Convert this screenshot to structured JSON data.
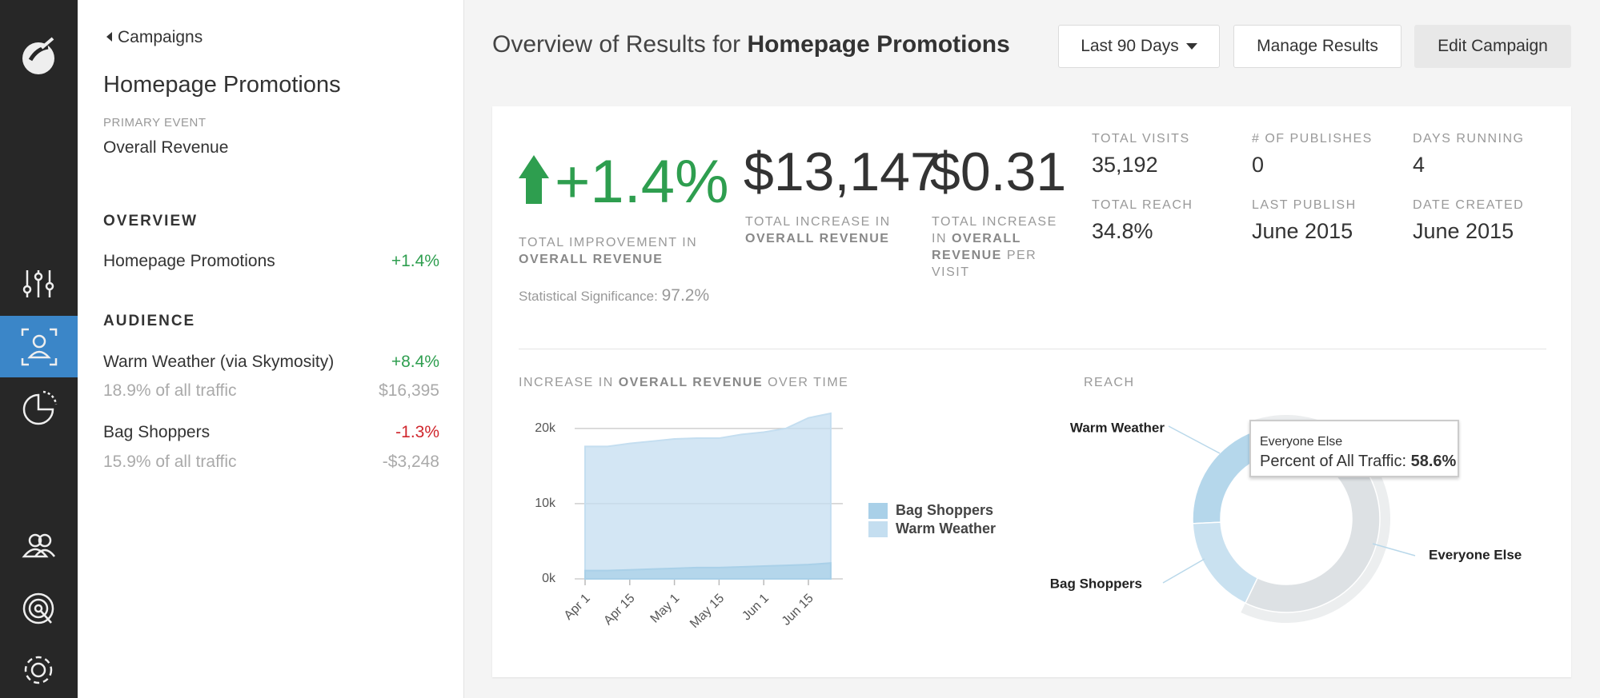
{
  "sidebar": {
    "back": "Campaigns",
    "title": "Homepage Promotions",
    "primary_label": "PRIMARY EVENT",
    "primary_value": "Overall Revenue",
    "overview_heading": "OVERVIEW",
    "overview": [
      {
        "name": "Homepage Promotions",
        "change": "+1.4%"
      }
    ],
    "audience_heading": "AUDIENCE",
    "audience": [
      {
        "name": "Warm Weather (via Skymosity)",
        "change": "+8.4%",
        "share": "18.9% of all traffic",
        "revenue": "$16,395"
      },
      {
        "name": "Bag Shoppers",
        "change": "-1.3%",
        "share": "15.9% of all traffic",
        "revenue": "-$3,248"
      }
    ]
  },
  "header": {
    "title_prefix": "Overview of Results for",
    "title_name": "Homepage Promotions",
    "buttons": [
      "Last 90 Days",
      "Manage Results",
      "Edit Campaign"
    ]
  },
  "summary": {
    "improvement": "+1.4%",
    "improvement_label": [
      "TOTAL IMPROVEMENT IN",
      "OVERALL REVENUE"
    ],
    "significance_label": "Statistical Significance:",
    "significance": "97.2%",
    "increase": "$13,147",
    "increase_label": [
      "TOTAL INCREASE IN",
      "OVERALL REVENUE"
    ],
    "per_visit": "$0.31",
    "per_visit_label": [
      "TOTAL INCREASE IN",
      "OVERALL REVENUE",
      "PER VISIT"
    ]
  },
  "stats": [
    {
      "label": "TOTAL VISITS",
      "value": "35,192"
    },
    {
      "label": "# OF PUBLISHES",
      "value": "0"
    },
    {
      "label": "DAYS RUNNING",
      "value": "4"
    },
    {
      "label": "TOTAL REACH",
      "value": "34.8%"
    },
    {
      "label": "LAST PUBLISH",
      "value": "June 2015"
    },
    {
      "label": "DATE CREATED",
      "value": "June 2015"
    }
  ],
  "chart_data": [
    {
      "type": "area",
      "title_parts": [
        "INCREASE IN",
        "OVERALL REVENUE",
        "OVER TIME"
      ],
      "x": [
        "Apr 1",
        "Apr 8",
        "Apr 15",
        "Apr 22",
        "May 1",
        "May 8",
        "May 15",
        "May 22",
        "Jun 1",
        "Jun 8",
        "Jun 15",
        "Jun 22"
      ],
      "xticks": [
        "Apr 1",
        "Apr 15",
        "May 1",
        "May 15",
        "Jun 1",
        "Jun 15"
      ],
      "ylim": [
        0,
        22000
      ],
      "yticks": [
        {
          "value": 0,
          "label": "0k"
        },
        {
          "value": 10000,
          "label": "10k"
        },
        {
          "value": 20000,
          "label": "20k"
        }
      ],
      "grid": true,
      "series": [
        {
          "name": "Bag Shoppers",
          "color": "#a9d0e8",
          "values": [
            1100,
            1100,
            1200,
            1300,
            1400,
            1500,
            1500,
            1600,
            1700,
            1800,
            1900,
            2100
          ]
        },
        {
          "name": "Warm Weather",
          "color": "#c4def0",
          "values": [
            17600,
            17600,
            18000,
            18300,
            18600,
            18700,
            18700,
            19200,
            19500,
            20000,
            21400,
            22000
          ]
        }
      ]
    },
    {
      "type": "pie",
      "title": "REACH",
      "categories": [
        "Warm Weather",
        "Bag Shoppers",
        "Everyone Else"
      ],
      "values": [
        18.9,
        15.9,
        58.6
      ],
      "colors": [
        "#b5d7eb",
        "#c9e1f0",
        "#dde1e4"
      ],
      "tooltip": {
        "title": "Everyone Else",
        "text": "Percent of All Traffic:",
        "value": "58.6%"
      }
    }
  ]
}
